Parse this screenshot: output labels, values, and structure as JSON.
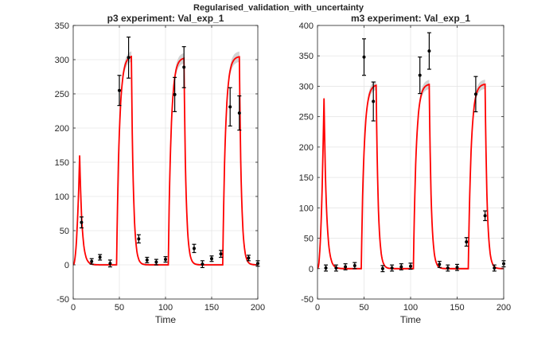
{
  "figure": {
    "suptitle": "Regularised_validation_with_uncertainty",
    "colors": {
      "model": "#ff0000",
      "band": "#c8c8c8",
      "data": "#000000",
      "grid": "#e6e6e6",
      "axis": "#262626"
    }
  },
  "chart_data": [
    {
      "type": "line",
      "title": "p3 experiment: Val_exp_1",
      "xlabel": "Time",
      "ylabel": "",
      "xlim": [
        0,
        200
      ],
      "ylim": [
        -50,
        350
      ],
      "xticks": [
        0,
        50,
        100,
        150,
        200
      ],
      "yticks": [
        -50,
        0,
        50,
        100,
        150,
        200,
        250,
        300,
        350
      ],
      "grid": true,
      "model_curve": {
        "peaks": [
          {
            "t_on": 0,
            "t_off": 7,
            "peak": 160
          },
          {
            "t_on": 47,
            "t_off": 63,
            "peak": 306
          },
          {
            "t_on": 103,
            "t_off": 120,
            "peak": 303
          },
          {
            "t_on": 162,
            "t_off": 180,
            "peak": 305
          }
        ]
      },
      "data_points": [
        {
          "x": 9,
          "y": 62,
          "err": 8
        },
        {
          "x": 20,
          "y": 5,
          "err": 4
        },
        {
          "x": 29,
          "y": 11,
          "err": 4
        },
        {
          "x": 40,
          "y": 2,
          "err": 5
        },
        {
          "x": 50,
          "y": 255,
          "err": 22
        },
        {
          "x": 60,
          "y": 303,
          "err": 30
        },
        {
          "x": 71,
          "y": 38,
          "err": 6
        },
        {
          "x": 80,
          "y": 7,
          "err": 4
        },
        {
          "x": 90,
          "y": 4,
          "err": 4
        },
        {
          "x": 100,
          "y": 8,
          "err": 4
        },
        {
          "x": 110,
          "y": 249,
          "err": 25
        },
        {
          "x": 120,
          "y": 289,
          "err": 30
        },
        {
          "x": 131,
          "y": 24,
          "err": 6
        },
        {
          "x": 140,
          "y": 1,
          "err": 5
        },
        {
          "x": 150,
          "y": 9,
          "err": 4
        },
        {
          "x": 160,
          "y": 16,
          "err": 5
        },
        {
          "x": 170,
          "y": 231,
          "err": 28
        },
        {
          "x": 180,
          "y": 222,
          "err": 25
        },
        {
          "x": 190,
          "y": 10,
          "err": 4
        },
        {
          "x": 200,
          "y": 2,
          "err": 4
        }
      ]
    },
    {
      "type": "line",
      "title": "m3 experiment: Val_exp_1",
      "xlabel": "Time",
      "ylabel": "",
      "xlim": [
        0,
        200
      ],
      "ylim": [
        -50,
        400
      ],
      "xticks": [
        0,
        50,
        100,
        150,
        200
      ],
      "yticks": [
        -50,
        0,
        50,
        100,
        150,
        200,
        250,
        300,
        350,
        400
      ],
      "grid": true,
      "model_curve": {
        "peaks": [
          {
            "t_on": 0,
            "t_off": 7,
            "peak": 280
          },
          {
            "t_on": 47,
            "t_off": 63,
            "peak": 303
          },
          {
            "t_on": 103,
            "t_off": 120,
            "peak": 304
          },
          {
            "t_on": 162,
            "t_off": 180,
            "peak": 304
          }
        ]
      },
      "data_points": [
        {
          "x": 9,
          "y": 1,
          "err": 5
        },
        {
          "x": 20,
          "y": 1,
          "err": 5
        },
        {
          "x": 30,
          "y": 3,
          "err": 5
        },
        {
          "x": 40,
          "y": 5,
          "err": 5
        },
        {
          "x": 50,
          "y": 348,
          "err": 30
        },
        {
          "x": 60,
          "y": 275,
          "err": 32
        },
        {
          "x": 70,
          "y": 0,
          "err": 5
        },
        {
          "x": 80,
          "y": 1,
          "err": 5
        },
        {
          "x": 90,
          "y": 3,
          "err": 5
        },
        {
          "x": 100,
          "y": 4,
          "err": 5
        },
        {
          "x": 110,
          "y": 318,
          "err": 30
        },
        {
          "x": 120,
          "y": 358,
          "err": 30
        },
        {
          "x": 131,
          "y": 7,
          "err": 5
        },
        {
          "x": 140,
          "y": 1,
          "err": 5
        },
        {
          "x": 150,
          "y": 2,
          "err": 5
        },
        {
          "x": 160,
          "y": 44,
          "err": 7
        },
        {
          "x": 170,
          "y": 287,
          "err": 29
        },
        {
          "x": 180,
          "y": 87,
          "err": 8
        },
        {
          "x": 190,
          "y": 1,
          "err": 5
        },
        {
          "x": 200,
          "y": 8,
          "err": 5
        }
      ]
    }
  ]
}
